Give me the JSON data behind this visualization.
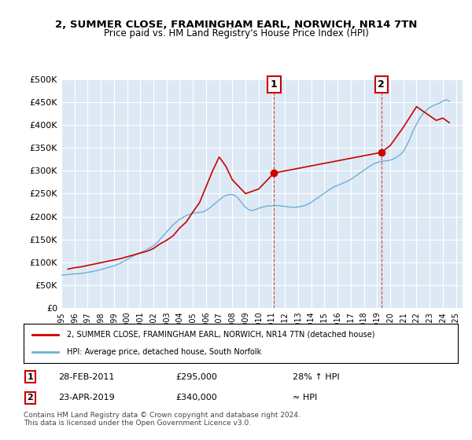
{
  "title": "2, SUMMER CLOSE, FRAMINGHAM EARL, NORWICH, NR14 7TN",
  "subtitle": "Price paid vs. HM Land Registry's House Price Index (HPI)",
  "background_color": "#dce9f5",
  "plot_bg_color": "#dce9f5",
  "ylabel": "",
  "xlabel": "",
  "ylim": [
    0,
    500000
  ],
  "yticks": [
    0,
    50000,
    100000,
    150000,
    200000,
    250000,
    300000,
    350000,
    400000,
    450000,
    500000
  ],
  "ytick_labels": [
    "£0",
    "£50K",
    "£100K",
    "£150K",
    "£200K",
    "£250K",
    "£300K",
    "£350K",
    "£400K",
    "£450K",
    "£500K"
  ],
  "xlim_start": 1995.0,
  "xlim_end": 2025.5,
  "xtick_years": [
    1995,
    1996,
    1997,
    1998,
    1999,
    2000,
    2001,
    2002,
    2003,
    2004,
    2005,
    2006,
    2007,
    2008,
    2009,
    2010,
    2011,
    2012,
    2013,
    2014,
    2015,
    2016,
    2017,
    2018,
    2019,
    2020,
    2021,
    2022,
    2023,
    2024,
    2025
  ],
  "hpi_color": "#6dafd7",
  "property_color": "#cc0000",
  "sale1_x": 2011.17,
  "sale1_y": 295000,
  "sale2_x": 2019.32,
  "sale2_y": 340000,
  "legend_property_label": "2, SUMMER CLOSE, FRAMINGHAM EARL, NORWICH, NR14 7TN (detached house)",
  "legend_hpi_label": "HPI: Average price, detached house, South Norfolk",
  "annotation1_label": "1",
  "annotation2_label": "2",
  "table_row1": [
    "1",
    "28-FEB-2011",
    "£295,000",
    "28% ↑ HPI"
  ],
  "table_row2": [
    "2",
    "23-APR-2019",
    "£340,000",
    "≈ HPI"
  ],
  "footer": "Contains HM Land Registry data © Crown copyright and database right 2024.\nThis data is licensed under the Open Government Licence v3.0.",
  "hpi_x": [
    1995.0,
    1995.25,
    1995.5,
    1995.75,
    1996.0,
    1996.25,
    1996.5,
    1996.75,
    1997.0,
    1997.25,
    1997.5,
    1997.75,
    1998.0,
    1998.25,
    1998.5,
    1998.75,
    1999.0,
    1999.25,
    1999.5,
    1999.75,
    2000.0,
    2000.25,
    2000.5,
    2000.75,
    2001.0,
    2001.25,
    2001.5,
    2001.75,
    2002.0,
    2002.25,
    2002.5,
    2002.75,
    2003.0,
    2003.25,
    2003.5,
    2003.75,
    2004.0,
    2004.25,
    2004.5,
    2004.75,
    2005.0,
    2005.25,
    2005.5,
    2005.75,
    2006.0,
    2006.25,
    2006.5,
    2006.75,
    2007.0,
    2007.25,
    2007.5,
    2007.75,
    2008.0,
    2008.25,
    2008.5,
    2008.75,
    2009.0,
    2009.25,
    2009.5,
    2009.75,
    2010.0,
    2010.25,
    2010.5,
    2010.75,
    2011.0,
    2011.25,
    2011.5,
    2011.75,
    2012.0,
    2012.25,
    2012.5,
    2012.75,
    2013.0,
    2013.25,
    2013.5,
    2013.75,
    2014.0,
    2014.25,
    2014.5,
    2014.75,
    2015.0,
    2015.25,
    2015.5,
    2015.75,
    2016.0,
    2016.25,
    2016.5,
    2016.75,
    2017.0,
    2017.25,
    2017.5,
    2017.75,
    2018.0,
    2018.25,
    2018.5,
    2018.75,
    2019.0,
    2019.25,
    2019.5,
    2019.75,
    2020.0,
    2020.25,
    2020.5,
    2020.75,
    2021.0,
    2021.25,
    2021.5,
    2021.75,
    2022.0,
    2022.25,
    2022.5,
    2022.75,
    2023.0,
    2023.25,
    2023.5,
    2023.75,
    2024.0,
    2024.25,
    2024.5
  ],
  "hpi_y": [
    72000,
    72500,
    73000,
    74000,
    74500,
    75000,
    75500,
    76500,
    78000,
    79000,
    80500,
    82000,
    84000,
    86000,
    88000,
    90000,
    92000,
    95000,
    98000,
    102000,
    106000,
    110000,
    114000,
    118000,
    121000,
    124000,
    128000,
    132000,
    136000,
    142000,
    150000,
    158000,
    166000,
    174000,
    182000,
    188000,
    194000,
    198000,
    202000,
    205000,
    207000,
    208000,
    209000,
    210000,
    213000,
    218000,
    224000,
    230000,
    236000,
    242000,
    246000,
    248000,
    248000,
    245000,
    238000,
    228000,
    220000,
    215000,
    213000,
    215000,
    218000,
    220000,
    222000,
    223000,
    223000,
    224000,
    224000,
    223000,
    222000,
    221000,
    220000,
    220000,
    221000,
    222000,
    224000,
    227000,
    231000,
    236000,
    241000,
    246000,
    251000,
    256000,
    261000,
    265000,
    268000,
    271000,
    274000,
    277000,
    281000,
    286000,
    291000,
    296000,
    301000,
    306000,
    311000,
    315000,
    318000,
    320000,
    321000,
    322000,
    323000,
    326000,
    330000,
    335000,
    342000,
    355000,
    370000,
    388000,
    402000,
    415000,
    425000,
    432000,
    438000,
    442000,
    445000,
    448000,
    452000,
    455000,
    452000
  ],
  "property_x": [
    1995.5,
    1996.0,
    1996.5,
    1997.0,
    1997.5,
    1998.0,
    1998.5,
    1999.0,
    1999.5,
    2000.0,
    2000.5,
    2001.0,
    2001.5,
    2002.0,
    2002.5,
    2003.0,
    2003.5,
    2004.0,
    2004.5,
    2005.0,
    2005.5,
    2006.0,
    2006.5,
    2007.0,
    2007.5,
    2007.75,
    2008.0,
    2008.5,
    2009.0,
    2009.5,
    2010.0,
    2011.17,
    2019.32,
    2020.0,
    2021.0,
    2022.0,
    2022.5,
    2023.0,
    2023.5,
    2024.0,
    2024.5
  ],
  "property_y": [
    85000,
    88000,
    90000,
    93000,
    96000,
    99000,
    102000,
    105000,
    108000,
    112000,
    116000,
    120000,
    124000,
    130000,
    140000,
    148000,
    158000,
    175000,
    188000,
    210000,
    230000,
    265000,
    300000,
    330000,
    310000,
    295000,
    280000,
    265000,
    250000,
    255000,
    260000,
    295000,
    340000,
    355000,
    395000,
    440000,
    430000,
    420000,
    410000,
    415000,
    405000
  ]
}
